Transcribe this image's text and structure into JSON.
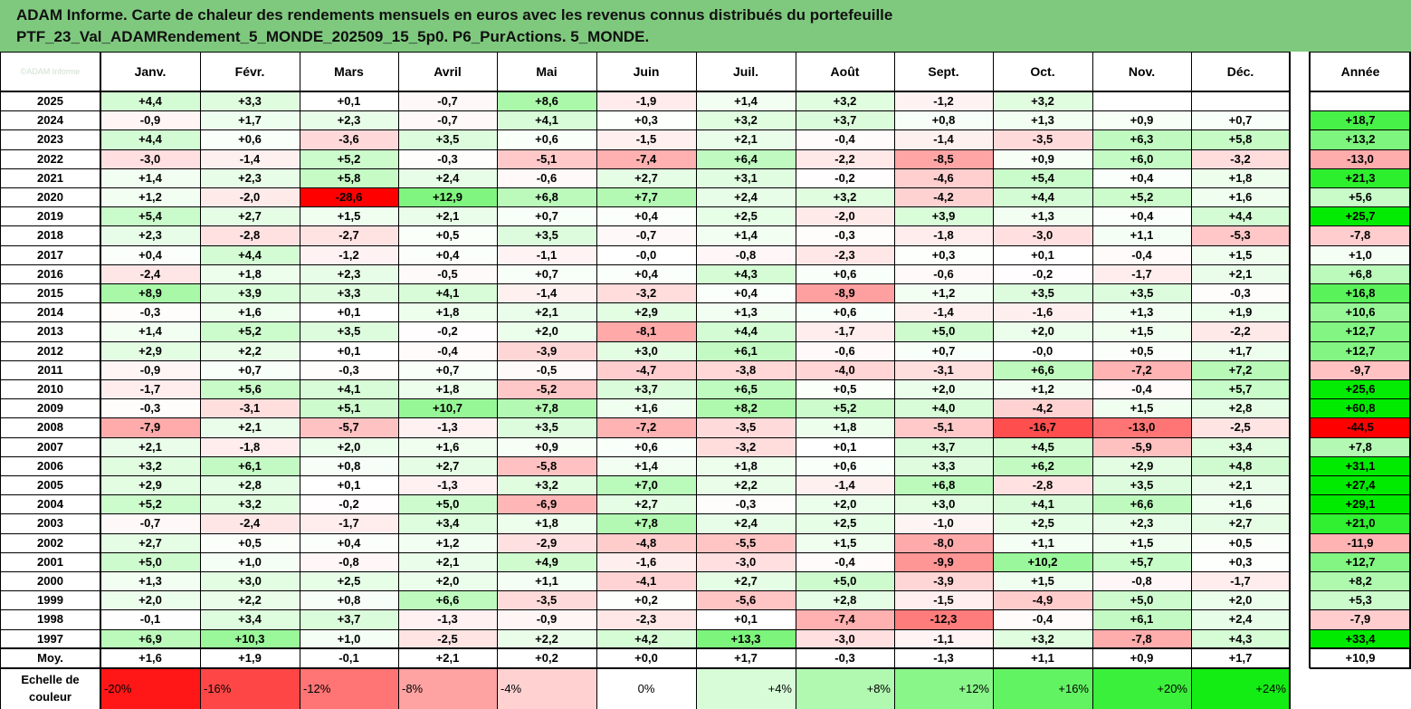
{
  "title": {
    "line1": "ADAM Informe. Carte de chaleur des rendements mensuels en euros avec les revenus connus distribués du portefeuille",
    "line2": "PTF_23_Val_ADAMRendement_5_MONDE_202509_15_5p0. P6_PurActions. 5_MONDE."
  },
  "corner_text": "©ADAM Informe",
  "colors": {
    "title_bg": "#7fc97f",
    "neg_max": "#ff0000",
    "pos_max": "#00e000",
    "neutral": "#ffffff"
  },
  "chart_data": {
    "type": "heatmap",
    "title": "Carte de chaleur des rendements mensuels en euros",
    "columns": [
      "Janv.",
      "Févr.",
      "Mars",
      "Avril",
      "Mai",
      "Juin",
      "Juil.",
      "Août",
      "Sept.",
      "Oct.",
      "Nov.",
      "Déc."
    ],
    "annual_label": "Année",
    "rows": [
      {
        "year": "2025",
        "months": [
          "+4,4",
          "+3,3",
          "+0,1",
          "-0,7",
          "+8,6",
          "-1,9",
          "+1,4",
          "+3,2",
          "-1,2",
          "+3,2",
          "",
          ""
        ],
        "annual": ""
      },
      {
        "year": "2024",
        "months": [
          "-0,9",
          "+1,7",
          "+2,3",
          "-0,7",
          "+4,1",
          "+0,3",
          "+3,2",
          "+3,7",
          "+0,8",
          "+1,3",
          "+0,9",
          "+0,7"
        ],
        "annual": "+18,7"
      },
      {
        "year": "2023",
        "months": [
          "+4,4",
          "+0,6",
          "-3,6",
          "+3,5",
          "+0,6",
          "-1,5",
          "+2,1",
          "-0,4",
          "-1,4",
          "-3,5",
          "+6,3",
          "+5,8"
        ],
        "annual": "+13,2"
      },
      {
        "year": "2022",
        "months": [
          "-3,0",
          "-1,4",
          "+5,2",
          "-0,3",
          "-5,1",
          "-7,4",
          "+6,4",
          "-2,2",
          "-8,5",
          "+0,9",
          "+6,0",
          "-3,2"
        ],
        "annual": "-13,0"
      },
      {
        "year": "2021",
        "months": [
          "+1,4",
          "+2,3",
          "+5,8",
          "+2,4",
          "-0,6",
          "+2,7",
          "+3,1",
          "-0,2",
          "-4,6",
          "+5,4",
          "+0,4",
          "+1,8"
        ],
        "annual": "+21,3"
      },
      {
        "year": "2020",
        "months": [
          "+1,2",
          "-2,0",
          "-28,6",
          "+12,9",
          "+6,8",
          "+7,7",
          "+2,4",
          "+3,2",
          "-4,2",
          "+4,4",
          "+5,2",
          "+1,6"
        ],
        "annual": "+5,6"
      },
      {
        "year": "2019",
        "months": [
          "+5,4",
          "+2,7",
          "+1,5",
          "+2,1",
          "+0,7",
          "+0,4",
          "+2,5",
          "-2,0",
          "+3,9",
          "+1,3",
          "+0,4",
          "+4,4"
        ],
        "annual": "+25,7"
      },
      {
        "year": "2018",
        "months": [
          "+2,3",
          "-2,8",
          "-2,7",
          "+0,5",
          "+3,5",
          "-0,7",
          "+1,4",
          "-0,3",
          "-1,8",
          "-3,0",
          "+1,1",
          "-5,3"
        ],
        "annual": "-7,8"
      },
      {
        "year": "2017",
        "months": [
          "+0,4",
          "+4,4",
          "-1,2",
          "+0,4",
          "-1,1",
          "-0,0",
          "-0,8",
          "-2,3",
          "+0,3",
          "+0,1",
          "-0,4",
          "+1,5"
        ],
        "annual": "+1,0"
      },
      {
        "year": "2016",
        "months": [
          "-2,4",
          "+1,8",
          "+2,3",
          "-0,5",
          "+0,7",
          "+0,4",
          "+4,3",
          "+0,6",
          "-0,6",
          "-0,2",
          "-1,7",
          "+2,1"
        ],
        "annual": "+6,8"
      },
      {
        "year": "2015",
        "months": [
          "+8,9",
          "+3,9",
          "+3,3",
          "+4,1",
          "-1,4",
          "-3,2",
          "+0,4",
          "-8,9",
          "+1,2",
          "+3,5",
          "+3,5",
          "-0,3"
        ],
        "annual": "+16,8"
      },
      {
        "year": "2014",
        "months": [
          "-0,3",
          "+1,6",
          "+0,1",
          "+1,8",
          "+2,1",
          "+2,9",
          "+1,3",
          "+0,6",
          "-1,4",
          "-1,6",
          "+1,3",
          "+1,9"
        ],
        "annual": "+10,6"
      },
      {
        "year": "2013",
        "months": [
          "+1,4",
          "+5,2",
          "+3,5",
          "-0,2",
          "+2,0",
          "-8,1",
          "+4,4",
          "-1,7",
          "+5,0",
          "+2,0",
          "+1,5",
          "-2,2"
        ],
        "annual": "+12,7"
      },
      {
        "year": "2012",
        "months": [
          "+2,9",
          "+2,2",
          "+0,1",
          "-0,4",
          "-3,9",
          "+3,0",
          "+6,1",
          "-0,6",
          "+0,7",
          "-0,0",
          "+0,5",
          "+1,7"
        ],
        "annual": "+12,7"
      },
      {
        "year": "2011",
        "months": [
          "-0,9",
          "+0,7",
          "-0,3",
          "+0,7",
          "-0,5",
          "-4,7",
          "-3,8",
          "-4,0",
          "-3,1",
          "+6,6",
          "-7,2",
          "+7,2"
        ],
        "annual": "-9,7"
      },
      {
        "year": "2010",
        "months": [
          "-1,7",
          "+5,6",
          "+4,1",
          "+1,8",
          "-5,2",
          "+3,7",
          "+6,5",
          "+0,5",
          "+2,0",
          "+1,2",
          "-0,4",
          "+5,7"
        ],
        "annual": "+25,6"
      },
      {
        "year": "2009",
        "months": [
          "-0,3",
          "-3,1",
          "+5,1",
          "+10,7",
          "+7,8",
          "+1,6",
          "+8,2",
          "+5,2",
          "+4,0",
          "-4,2",
          "+1,5",
          "+2,8"
        ],
        "annual": "+60,8"
      },
      {
        "year": "2008",
        "months": [
          "-7,9",
          "+2,1",
          "-5,7",
          "-1,3",
          "+3,5",
          "-7,2",
          "-3,5",
          "+1,8",
          "-5,1",
          "-16,7",
          "-13,0",
          "-2,5"
        ],
        "annual": "-44,5"
      },
      {
        "year": "2007",
        "months": [
          "+2,1",
          "-1,8",
          "+2,0",
          "+1,6",
          "+0,9",
          "+0,6",
          "-3,2",
          "+0,1",
          "+3,7",
          "+4,5",
          "-5,9",
          "+3,4"
        ],
        "annual": "+7,8"
      },
      {
        "year": "2006",
        "months": [
          "+3,2",
          "+6,1",
          "+0,8",
          "+2,7",
          "-5,8",
          "+1,4",
          "+1,8",
          "+0,6",
          "+3,3",
          "+6,2",
          "+2,9",
          "+4,8"
        ],
        "annual": "+31,1"
      },
      {
        "year": "2005",
        "months": [
          "+2,9",
          "+2,8",
          "+0,1",
          "-1,3",
          "+3,2",
          "+7,0",
          "+2,2",
          "-1,4",
          "+6,8",
          "-2,8",
          "+3,5",
          "+2,1"
        ],
        "annual": "+27,4"
      },
      {
        "year": "2004",
        "months": [
          "+5,2",
          "+3,2",
          "-0,2",
          "+5,0",
          "-6,9",
          "+2,7",
          "-0,3",
          "+2,0",
          "+3,0",
          "+4,1",
          "+6,6",
          "+1,6"
        ],
        "annual": "+29,1"
      },
      {
        "year": "2003",
        "months": [
          "-0,7",
          "-2,4",
          "-1,7",
          "+3,4",
          "+1,8",
          "+7,8",
          "+2,4",
          "+2,5",
          "-1,0",
          "+2,5",
          "+2,3",
          "+2,7"
        ],
        "annual": "+21,0"
      },
      {
        "year": "2002",
        "months": [
          "+2,7",
          "+0,5",
          "+0,4",
          "+1,2",
          "-2,9",
          "-4,8",
          "-5,5",
          "+1,5",
          "-8,0",
          "+1,1",
          "+1,5",
          "+0,5"
        ],
        "annual": "-11,9"
      },
      {
        "year": "2001",
        "months": [
          "+5,0",
          "+1,0",
          "-0,8",
          "+2,1",
          "+4,9",
          "-1,6",
          "-3,0",
          "-0,4",
          "-9,9",
          "+10,2",
          "+5,7",
          "+0,3"
        ],
        "annual": "+12,7"
      },
      {
        "year": "2000",
        "months": [
          "+1,3",
          "+3,0",
          "+2,5",
          "+2,0",
          "+1,1",
          "-4,1",
          "+2,7",
          "+5,0",
          "-3,9",
          "+1,5",
          "-0,8",
          "-1,7"
        ],
        "annual": "+8,2"
      },
      {
        "year": "1999",
        "months": [
          "+2,0",
          "+2,2",
          "+0,8",
          "+6,6",
          "-3,5",
          "+0,2",
          "-5,6",
          "+2,8",
          "-1,5",
          "-4,9",
          "+5,0",
          "+2,0"
        ],
        "annual": "+5,3"
      },
      {
        "year": "1998",
        "months": [
          "-0,1",
          "+3,4",
          "+3,7",
          "-1,3",
          "-0,9",
          "-2,3",
          "+0,1",
          "-7,4",
          "-12,3",
          "-0,4",
          "+6,1",
          "+2,4"
        ],
        "annual": "-7,9"
      },
      {
        "year": "1997",
        "months": [
          "+6,9",
          "+10,3",
          "+1,0",
          "-2,5",
          "+2,2",
          "+4,2",
          "+13,3",
          "-3,0",
          "-1,1",
          "+3,2",
          "-7,8",
          "+4,3"
        ],
        "annual": "+33,4"
      }
    ],
    "average": {
      "label": "Moy.",
      "months": [
        "+1,6",
        "+1,9",
        "-0,1",
        "+2,1",
        "+0,2",
        "+0,0",
        "+1,7",
        "-0,3",
        "-1,3",
        "+1,1",
        "+0,9",
        "+1,7"
      ],
      "annual": "+10,9"
    },
    "scale": {
      "label_line1": "Echelle de",
      "label_line2": "couleur",
      "steps": [
        "-20%",
        "-16%",
        "-12%",
        "-8%",
        "-4%",
        "0%",
        "+4%",
        "+8%",
        "+12%",
        "+16%",
        "+20%",
        "+24%"
      ]
    }
  }
}
